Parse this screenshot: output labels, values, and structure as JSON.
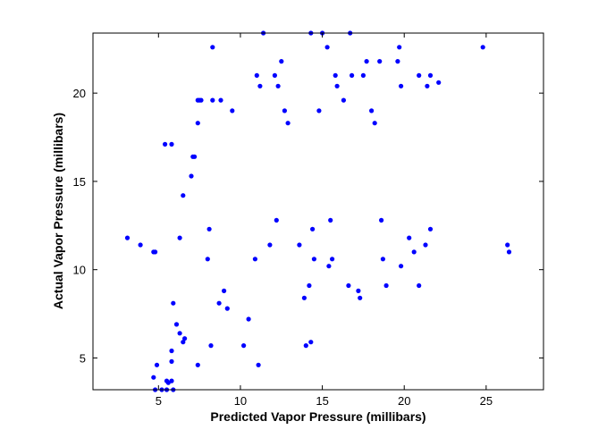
{
  "chart_data": {
    "type": "scatter",
    "title": "",
    "xlabel": "Predicted Vapor Pressure (millibars)",
    "ylabel": "Actual Vapor Pressure (millibars)",
    "xlim": [
      1,
      28.5
    ],
    "ylim": [
      3.2,
      23.4
    ],
    "x_ticks": [
      5,
      10,
      15,
      20,
      25
    ],
    "y_ticks": [
      5,
      10,
      15,
      20
    ],
    "grid": false,
    "marker_color": "#0000ff",
    "series": [
      {
        "points": [
          [
            3.1,
            11.8
          ],
          [
            3.9,
            11.4
          ],
          [
            4.7,
            11.0
          ],
          [
            4.8,
            11.0
          ],
          [
            4.7,
            3.9
          ],
          [
            4.9,
            4.6
          ],
          [
            4.8,
            3.2
          ],
          [
            5.2,
            3.2
          ],
          [
            5.5,
            3.2
          ],
          [
            5.5,
            3.7
          ],
          [
            5.6,
            3.6
          ],
          [
            5.9,
            3.2
          ],
          [
            5.8,
            3.7
          ],
          [
            5.8,
            4.8
          ],
          [
            5.8,
            5.4
          ],
          [
            5.9,
            8.1
          ],
          [
            6.1,
            6.9
          ],
          [
            6.3,
            6.4
          ],
          [
            6.5,
            5.9
          ],
          [
            6.6,
            6.1
          ],
          [
            6.3,
            11.8
          ],
          [
            6.5,
            14.2
          ],
          [
            5.4,
            17.1
          ],
          [
            5.8,
            17.1
          ],
          [
            7.0,
            15.3
          ],
          [
            7.1,
            16.4
          ],
          [
            7.2,
            16.4
          ],
          [
            7.4,
            18.3
          ],
          [
            7.4,
            19.6
          ],
          [
            7.5,
            19.6
          ],
          [
            7.6,
            19.6
          ],
          [
            7.4,
            4.6
          ],
          [
            8.0,
            10.6
          ],
          [
            8.1,
            12.3
          ],
          [
            8.2,
            5.7
          ],
          [
            8.3,
            19.6
          ],
          [
            8.3,
            22.6
          ],
          [
            8.7,
            8.1
          ],
          [
            8.8,
            19.6
          ],
          [
            9.0,
            8.8
          ],
          [
            9.2,
            7.8
          ],
          [
            9.5,
            19.0
          ],
          [
            10.2,
            5.7
          ],
          [
            10.5,
            7.2
          ],
          [
            10.9,
            10.6
          ],
          [
            11.1,
            4.6
          ],
          [
            11.0,
            21.0
          ],
          [
            11.2,
            20.4
          ],
          [
            11.4,
            23.4
          ],
          [
            11.8,
            11.4
          ],
          [
            12.1,
            21.0
          ],
          [
            12.2,
            12.8
          ],
          [
            12.3,
            20.4
          ],
          [
            12.5,
            21.8
          ],
          [
            12.7,
            19.0
          ],
          [
            12.9,
            18.3
          ],
          [
            13.6,
            11.4
          ],
          [
            13.9,
            8.4
          ],
          [
            14.0,
            5.7
          ],
          [
            14.2,
            9.1
          ],
          [
            14.3,
            5.9
          ],
          [
            14.4,
            12.3
          ],
          [
            14.5,
            10.6
          ],
          [
            14.8,
            19.0
          ],
          [
            14.3,
            23.4
          ],
          [
            15.0,
            23.4
          ],
          [
            15.3,
            22.6
          ],
          [
            15.4,
            10.2
          ],
          [
            15.5,
            12.8
          ],
          [
            15.6,
            10.6
          ],
          [
            15.8,
            21.0
          ],
          [
            15.9,
            20.4
          ],
          [
            16.3,
            19.6
          ],
          [
            16.6,
            9.1
          ],
          [
            16.7,
            23.4
          ],
          [
            16.8,
            21.0
          ],
          [
            17.2,
            8.8
          ],
          [
            17.3,
            8.4
          ],
          [
            17.5,
            21.0
          ],
          [
            17.7,
            21.8
          ],
          [
            18.0,
            19.0
          ],
          [
            18.2,
            18.3
          ],
          [
            18.5,
            21.8
          ],
          [
            18.6,
            12.8
          ],
          [
            18.7,
            10.6
          ],
          [
            18.9,
            9.1
          ],
          [
            19.6,
            21.8
          ],
          [
            19.7,
            22.6
          ],
          [
            19.8,
            10.2
          ],
          [
            19.8,
            20.4
          ],
          [
            20.3,
            11.8
          ],
          [
            20.6,
            11.0
          ],
          [
            20.9,
            9.1
          ],
          [
            20.9,
            21.0
          ],
          [
            21.3,
            11.4
          ],
          [
            21.4,
            20.4
          ],
          [
            21.6,
            12.3
          ],
          [
            21.6,
            21.0
          ],
          [
            22.1,
            20.6
          ],
          [
            24.8,
            22.6
          ],
          [
            26.3,
            11.4
          ],
          [
            26.4,
            11.0
          ]
        ]
      }
    ]
  }
}
